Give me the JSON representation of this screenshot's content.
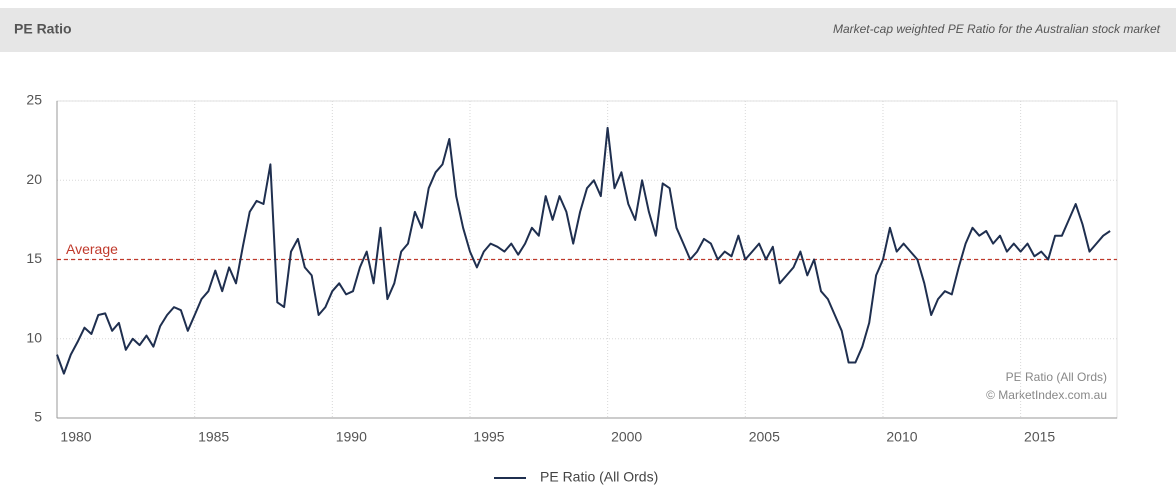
{
  "chart_data": {
    "type": "line",
    "title": "PE Ratio",
    "subtitle": "Market-cap weighted PE Ratio for the Australian stock market",
    "x": [
      1980,
      1980.25,
      1980.5,
      1980.75,
      1981,
      1981.25,
      1981.5,
      1981.75,
      1982,
      1982.25,
      1982.5,
      1982.75,
      1983,
      1983.25,
      1983.5,
      1983.75,
      1984,
      1984.25,
      1984.5,
      1984.75,
      1985,
      1985.25,
      1985.5,
      1985.75,
      1986,
      1986.25,
      1986.5,
      1986.75,
      1987,
      1987.25,
      1987.5,
      1987.75,
      1988,
      1988.25,
      1988.5,
      1988.75,
      1989,
      1989.25,
      1989.5,
      1989.75,
      1990,
      1990.25,
      1990.5,
      1990.75,
      1991,
      1991.25,
      1991.5,
      1991.75,
      1992,
      1992.25,
      1992.5,
      1992.75,
      1993,
      1993.25,
      1993.5,
      1993.75,
      1994,
      1994.25,
      1994.5,
      1994.75,
      1995,
      1995.25,
      1995.5,
      1995.75,
      1996,
      1996.25,
      1996.5,
      1996.75,
      1997,
      1997.25,
      1997.5,
      1997.75,
      1998,
      1998.25,
      1998.5,
      1998.75,
      1999,
      1999.25,
      1999.5,
      1999.75,
      2000,
      2000.25,
      2000.5,
      2000.75,
      2001,
      2001.25,
      2001.5,
      2001.75,
      2002,
      2002.25,
      2002.5,
      2002.75,
      2003,
      2003.25,
      2003.5,
      2003.75,
      2004,
      2004.25,
      2004.5,
      2004.75,
      2005,
      2005.25,
      2005.5,
      2005.75,
      2006,
      2006.25,
      2006.5,
      2006.75,
      2007,
      2007.25,
      2007.5,
      2007.75,
      2008,
      2008.25,
      2008.5,
      2008.75,
      2009,
      2009.25,
      2009.5,
      2009.75,
      2010,
      2010.25,
      2010.5,
      2010.75,
      2011,
      2011.25,
      2011.5,
      2011.75,
      2012,
      2012.25,
      2012.5,
      2012.75,
      2013,
      2013.25,
      2013.5,
      2013.75,
      2014,
      2014.25,
      2014.5,
      2014.75,
      2015,
      2015.25,
      2015.5,
      2015.75,
      2016,
      2016.25,
      2016.5,
      2016.75,
      2017,
      2017.25,
      2017.5,
      2017.75,
      2018,
      2018.25
    ],
    "series": [
      {
        "name": "PE Ratio (All Ords)",
        "color": "#1f2f4f",
        "values": [
          9.0,
          7.8,
          9.0,
          9.8,
          10.7,
          10.3,
          11.5,
          11.6,
          10.5,
          11.0,
          9.3,
          10.0,
          9.6,
          10.2,
          9.5,
          10.8,
          11.5,
          12.0,
          11.8,
          10.5,
          11.5,
          12.5,
          13.0,
          14.3,
          13.0,
          14.5,
          13.5,
          15.8,
          18.0,
          18.7,
          18.5,
          21.0,
          12.3,
          12.0,
          15.5,
          16.3,
          14.5,
          14.0,
          11.5,
          12.0,
          13.0,
          13.5,
          12.8,
          13.0,
          14.5,
          15.5,
          13.5,
          17.0,
          12.5,
          13.5,
          15.5,
          16.0,
          18.0,
          17.0,
          19.5,
          20.5,
          21.0,
          22.6,
          19.0,
          17.0,
          15.5,
          14.5,
          15.5,
          16.0,
          15.8,
          15.5,
          16.0,
          15.3,
          16.0,
          17.0,
          16.5,
          19.0,
          17.5,
          19.0,
          18.0,
          16.0,
          18.0,
          19.5,
          20.0,
          19.0,
          23.3,
          19.5,
          20.5,
          18.5,
          17.5,
          20.0,
          18.0,
          16.5,
          19.8,
          19.5,
          17.0,
          16.0,
          15.0,
          15.5,
          16.3,
          16.0,
          15.0,
          15.5,
          15.2,
          16.5,
          15.0,
          15.5,
          16.0,
          15.0,
          15.8,
          13.5,
          14.0,
          14.5,
          15.5,
          14.0,
          15.0,
          13.0,
          12.5,
          11.5,
          10.5,
          8.5,
          8.5,
          9.5,
          11.0,
          14.0,
          15.0,
          17.0,
          15.5,
          16.0,
          15.5,
          15.0,
          13.5,
          11.5,
          12.5,
          13.0,
          12.8,
          14.5,
          16.0,
          17.0,
          16.5,
          16.8,
          16.0,
          16.5,
          15.5,
          16.0,
          15.5,
          16.0,
          15.2,
          15.5,
          15.0,
          16.5,
          16.5,
          17.5,
          18.5,
          17.2,
          15.5,
          16.0,
          16.5,
          16.8
        ]
      }
    ],
    "average": {
      "value": 15,
      "label": "Average",
      "color": "#c0392b"
    },
    "credits": [
      "PE Ratio (All Ords)",
      "© MarketIndex.com.au"
    ],
    "xlim": [
      1980,
      2018.5
    ],
    "xticks": [
      1980,
      1985,
      1990,
      1995,
      2000,
      2005,
      2010,
      2015
    ],
    "ylim": [
      5,
      25
    ],
    "yticks": [
      5,
      10,
      15,
      20,
      25
    ],
    "grid": true
  }
}
